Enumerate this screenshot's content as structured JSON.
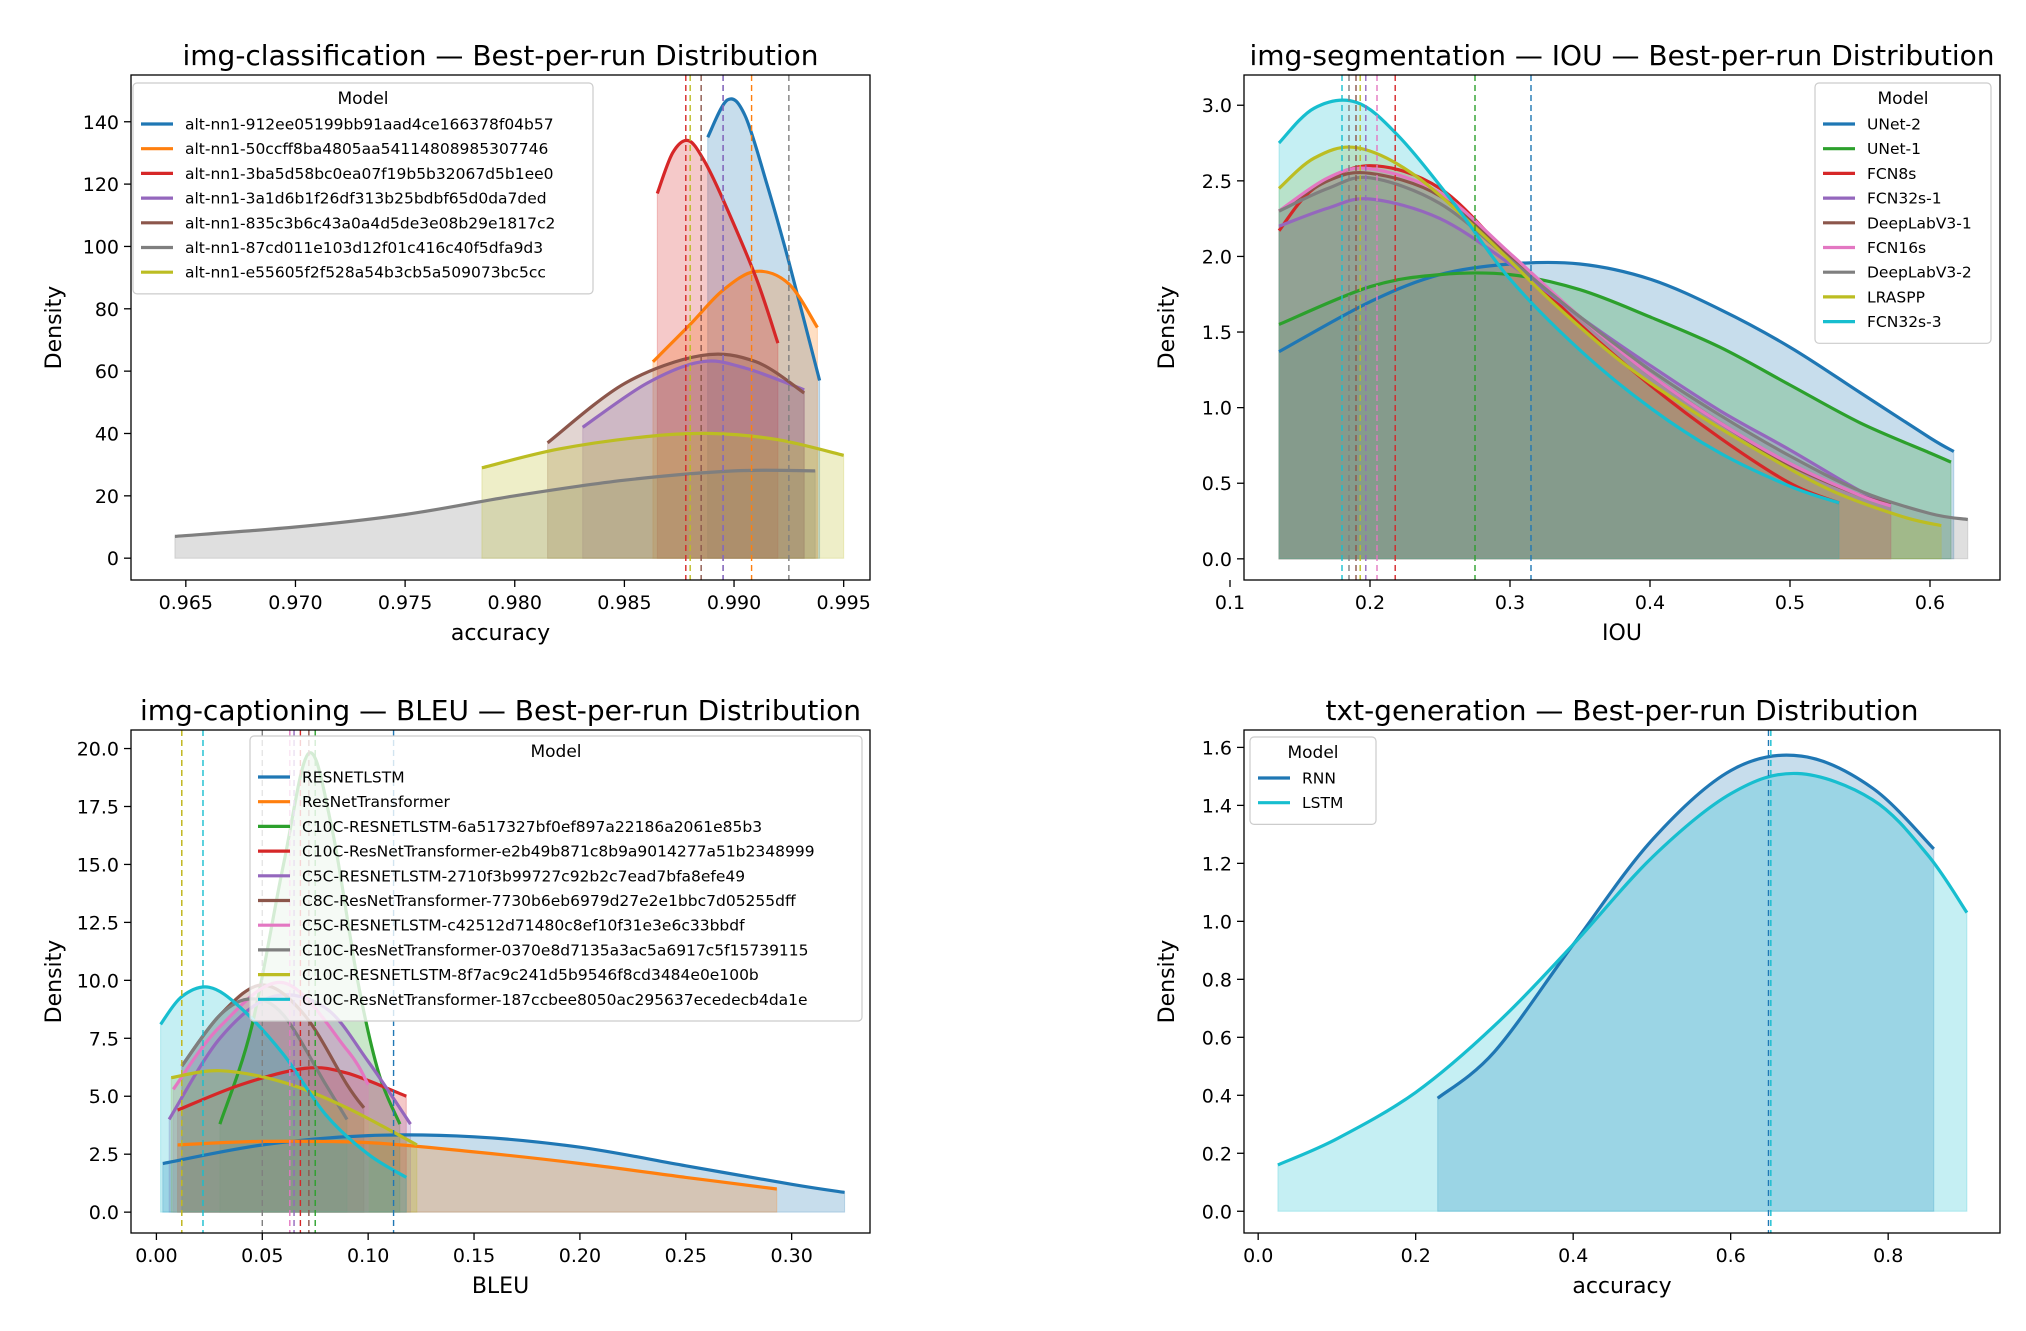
{
  "figure_title": "Best-per-run Distribution (4 panels)",
  "chart_data": [
    {
      "type": "kde",
      "title": "img-classification — Best-per-run Distribution",
      "xlabel": "accuracy",
      "ylabel": "Density",
      "xlim": [
        0.9625,
        0.9962
      ],
      "ylim": [
        -7,
        155
      ],
      "xticks": [
        0.965,
        0.97,
        0.975,
        0.98,
        0.985,
        0.99,
        0.995
      ],
      "xtick_labels": [
        "0.965",
        "0.970",
        "0.975",
        "0.980",
        "0.985",
        "0.990",
        "0.995"
      ],
      "yticks": [
        0,
        20,
        40,
        60,
        80,
        100,
        120,
        140
      ],
      "ytick_labels": [
        "0",
        "20",
        "40",
        "60",
        "80",
        "100",
        "120",
        "140"
      ],
      "legend_title": "Model",
      "legend_position": "top-left",
      "series": [
        {
          "name": "alt-nn1-912ee05199bb91aad4ce166378f04b57",
          "color": "#1f77b4",
          "x": [
            0.9888,
            0.9897,
            0.9905,
            0.9915,
            0.9925,
            0.9939
          ],
          "y": [
            135,
            147,
            142,
            120,
            95,
            57
          ],
          "mean": 0.9895
        },
        {
          "name": "alt-nn1-50ccff8ba4805aa54114808985307746",
          "color": "#ff7f0e",
          "x": [
            0.9863,
            0.988,
            0.9895,
            0.991,
            0.9925,
            0.9938
          ],
          "y": [
            63,
            75,
            86,
            92,
            88,
            74
          ],
          "mean": 0.9908
        },
        {
          "name": "alt-nn1-3ba5d58bc0ea07f19b5b32067d5b1ee0",
          "color": "#d62728",
          "x": [
            0.9865,
            0.9872,
            0.9879,
            0.9886,
            0.9895,
            0.991,
            0.992
          ],
          "y": [
            117,
            130,
            134,
            128,
            115,
            90,
            69
          ],
          "mean": 0.9878
        },
        {
          "name": "alt-nn1-3a1d6b1f26df313b25bdbf65d0da7ded",
          "color": "#9467bd",
          "x": [
            0.9831,
            0.986,
            0.9885,
            0.9905,
            0.9932
          ],
          "y": [
            42,
            56,
            63,
            61,
            54
          ],
          "mean": 0.9895
        },
        {
          "name": "alt-nn1-835c3b6c43a0a4d5de3e08b29e1817c2",
          "color": "#8c564b",
          "x": [
            0.9815,
            0.985,
            0.9885,
            0.991,
            0.9932
          ],
          "y": [
            37,
            56,
            65,
            63,
            53
          ],
          "mean": 0.9885
        },
        {
          "name": "alt-nn1-87cd011e103d12f01c416c40f5dfa9d3",
          "color": "#7f7f7f",
          "x": [
            0.9645,
            0.97,
            0.975,
            0.98,
            0.985,
            0.99,
            0.9937
          ],
          "y": [
            7,
            10,
            14,
            20,
            25,
            28,
            28
          ],
          "mean": 0.9925
        },
        {
          "name": "alt-nn1-e55605f2f528a54b3cb5a509073bc5cc",
          "color": "#bcbd22",
          "x": [
            0.9785,
            0.982,
            0.986,
            0.989,
            0.992,
            0.995
          ],
          "y": [
            29,
            35,
            39,
            40,
            38,
            33
          ],
          "mean": 0.988
        }
      ]
    },
    {
      "type": "kde",
      "title": "img-segmentation — IOU — Best-per-run Distribution",
      "xlabel": "IOU",
      "ylabel": "Density",
      "xlim": [
        0.11,
        0.65
      ],
      "ylim": [
        -0.14,
        3.2
      ],
      "xticks": [
        0.1,
        0.2,
        0.3,
        0.4,
        0.5,
        0.6
      ],
      "xtick_labels": [
        "0.1",
        "0.2",
        "0.3",
        "0.4",
        "0.5",
        "0.6"
      ],
      "yticks": [
        0.0,
        0.5,
        1.0,
        1.5,
        2.0,
        2.5,
        3.0
      ],
      "ytick_labels": [
        "0.0",
        "0.5",
        "1.0",
        "1.5",
        "2.0",
        "2.5",
        "3.0"
      ],
      "legend_title": "Model",
      "legend_position": "top-right",
      "series": [
        {
          "name": "UNet-2",
          "color": "#1f77b4",
          "x": [
            0.135,
            0.2,
            0.25,
            0.3,
            0.35,
            0.4,
            0.45,
            0.5,
            0.55,
            0.6,
            0.617
          ],
          "y": [
            1.37,
            1.7,
            1.88,
            1.95,
            1.95,
            1.85,
            1.65,
            1.4,
            1.1,
            0.8,
            0.71
          ],
          "mean": 0.315
        },
        {
          "name": "UNet-1",
          "color": "#2ca02c",
          "x": [
            0.135,
            0.2,
            0.25,
            0.3,
            0.35,
            0.4,
            0.45,
            0.5,
            0.55,
            0.6,
            0.615
          ],
          "y": [
            1.55,
            1.8,
            1.88,
            1.88,
            1.78,
            1.6,
            1.4,
            1.15,
            0.9,
            0.7,
            0.64
          ],
          "mean": 0.275
        },
        {
          "name": "FCN8s",
          "color": "#d62728",
          "x": [
            0.135,
            0.16,
            0.2,
            0.25,
            0.3,
            0.35,
            0.4,
            0.45,
            0.5,
            0.535
          ],
          "y": [
            2.17,
            2.45,
            2.6,
            2.45,
            2.0,
            1.55,
            1.15,
            0.8,
            0.5,
            0.37
          ],
          "mean": 0.218
        },
        {
          "name": "FCN32s-1",
          "color": "#9467bd",
          "x": [
            0.135,
            0.17,
            0.2,
            0.25,
            0.3,
            0.35,
            0.4,
            0.45,
            0.5,
            0.55,
            0.572
          ],
          "y": [
            2.2,
            2.32,
            2.38,
            2.25,
            1.95,
            1.6,
            1.28,
            0.98,
            0.72,
            0.45,
            0.37
          ],
          "mean": 0.197
        },
        {
          "name": "DeepLabV3-1",
          "color": "#8c564b",
          "x": [
            0.135,
            0.17,
            0.2,
            0.25,
            0.3,
            0.35,
            0.4,
            0.45,
            0.5,
            0.55,
            0.572
          ],
          "y": [
            2.3,
            2.5,
            2.55,
            2.4,
            2.0,
            1.6,
            1.22,
            0.9,
            0.62,
            0.42,
            0.36
          ],
          "mean": 0.19
        },
        {
          "name": "FCN16s",
          "color": "#e377c2",
          "x": [
            0.135,
            0.17,
            0.2,
            0.25,
            0.3,
            0.35,
            0.4,
            0.45,
            0.5,
            0.55,
            0.572
          ],
          "y": [
            2.3,
            2.52,
            2.58,
            2.42,
            2.02,
            1.6,
            1.22,
            0.9,
            0.63,
            0.42,
            0.35
          ],
          "mean": 0.205
        },
        {
          "name": "DeepLabV3-2",
          "color": "#7f7f7f",
          "x": [
            0.135,
            0.17,
            0.2,
            0.25,
            0.3,
            0.35,
            0.4,
            0.45,
            0.5,
            0.55,
            0.6,
            0.627
          ],
          "y": [
            2.3,
            2.45,
            2.52,
            2.35,
            1.98,
            1.6,
            1.25,
            0.95,
            0.68,
            0.45,
            0.3,
            0.26
          ],
          "mean": 0.185
        },
        {
          "name": "LRASPP",
          "color": "#bcbd22",
          "x": [
            0.135,
            0.16,
            0.19,
            0.23,
            0.28,
            0.33,
            0.38,
            0.43,
            0.48,
            0.53,
            0.58,
            0.608
          ],
          "y": [
            2.45,
            2.65,
            2.72,
            2.55,
            2.15,
            1.7,
            1.3,
            0.98,
            0.7,
            0.45,
            0.28,
            0.22
          ],
          "mean": 0.193
        },
        {
          "name": "FCN32s-3",
          "color": "#17becf",
          "x": [
            0.135,
            0.16,
            0.19,
            0.22,
            0.26,
            0.3,
            0.35,
            0.4,
            0.45,
            0.5,
            0.535
          ],
          "y": [
            2.75,
            2.98,
            3.02,
            2.8,
            2.35,
            1.85,
            1.38,
            1.0,
            0.7,
            0.48,
            0.37
          ],
          "mean": 0.18
        }
      ]
    },
    {
      "type": "kde",
      "title": "img-captioning — BLEU — Best-per-run Distribution",
      "xlabel": "BLEU",
      "ylabel": "Density",
      "xlim": [
        -0.012,
        0.337
      ],
      "ylim": [
        -0.9,
        20.8
      ],
      "xticks": [
        0.0,
        0.05,
        0.1,
        0.15,
        0.2,
        0.25,
        0.3
      ],
      "xtick_labels": [
        "0.00",
        "0.05",
        "0.10",
        "0.15",
        "0.20",
        "0.25",
        "0.30"
      ],
      "yticks": [
        0.0,
        2.5,
        5.0,
        7.5,
        10.0,
        12.5,
        15.0,
        17.5,
        20.0
      ],
      "ytick_labels": [
        "0.0",
        "2.5",
        "5.0",
        "7.5",
        "10.0",
        "12.5",
        "15.0",
        "17.5",
        "20.0"
      ],
      "legend_title": "Model",
      "legend_position": "top-center",
      "series": [
        {
          "name": "RESNETLSTM",
          "color": "#1f77b4",
          "x": [
            0.003,
            0.05,
            0.1,
            0.15,
            0.2,
            0.25,
            0.3,
            0.325
          ],
          "y": [
            2.1,
            2.9,
            3.3,
            3.25,
            2.8,
            2.0,
            1.2,
            0.85
          ],
          "mean": 0.112
        },
        {
          "name": "ResNetTransformer",
          "color": "#ff7f0e",
          "x": [
            0.01,
            0.05,
            0.1,
            0.15,
            0.2,
            0.25,
            0.293
          ],
          "y": [
            2.9,
            3.05,
            3.0,
            2.6,
            2.1,
            1.5,
            1.0
          ],
          "mean": 0.012
        },
        {
          "name": "C10C-RESNETLSTM-6a517327bf0ef897a22186a2061e85b3",
          "color": "#2ca02c",
          "x": [
            0.03,
            0.045,
            0.06,
            0.072,
            0.083,
            0.095,
            0.105,
            0.115
          ],
          "y": [
            3.8,
            8.0,
            15.0,
            19.8,
            16.5,
            10.0,
            6.0,
            3.8
          ],
          "mean": 0.075
        },
        {
          "name": "C10C-ResNetTransformer-e2b49b871c8b9a9014277a51b2348999",
          "color": "#d62728",
          "x": [
            0.01,
            0.04,
            0.07,
            0.09,
            0.118
          ],
          "y": [
            4.4,
            5.5,
            6.2,
            6.0,
            5.0
          ],
          "mean": 0.068
        },
        {
          "name": "C5C-RESNETLSTM-2710f3b99727c92b2c7ead7bfa8efe49",
          "color": "#9467bd",
          "x": [
            0.006,
            0.03,
            0.055,
            0.08,
            0.1,
            0.12
          ],
          "y": [
            4.0,
            7.5,
            9.3,
            8.8,
            6.5,
            3.8
          ],
          "mean": 0.065
        },
        {
          "name": "C8C-ResNetTransformer-7730b6eb6979d27e2e1bbc7d05255dff",
          "color": "#8c564b",
          "x": [
            0.012,
            0.03,
            0.05,
            0.07,
            0.09,
            0.098
          ],
          "y": [
            6.3,
            8.5,
            9.8,
            8.5,
            5.5,
            4.5
          ],
          "mean": 0.072
        },
        {
          "name": "C5C-RESNETLSTM-c42512d71480c8ef10f31e3e6c33bbdf",
          "color": "#e377c2",
          "x": [
            0.008,
            0.03,
            0.06,
            0.09,
            0.1
          ],
          "y": [
            5.3,
            8.0,
            9.9,
            7.0,
            5.5
          ],
          "mean": 0.063
        },
        {
          "name": "C10C-ResNetTransformer-0370e8d7135a3ac5a6917c5f15739115",
          "color": "#7f7f7f",
          "x": [
            0.012,
            0.03,
            0.045,
            0.06,
            0.08,
            0.09
          ],
          "y": [
            6.3,
            8.5,
            9.2,
            8.5,
            5.5,
            4.0
          ],
          "mean": 0.05
        },
        {
          "name": "C10C-RESNETLSTM-8f7ac9c241d5b9546f8cd3484e0e100b",
          "color": "#bcbd22",
          "x": [
            0.007,
            0.03,
            0.06,
            0.09,
            0.123
          ],
          "y": [
            5.8,
            6.1,
            5.6,
            4.5,
            2.9
          ],
          "mean": 0.012
        },
        {
          "name": "C10C-ResNetTransformer-187ccbee8050ac295637ecedecb4da1e",
          "color": "#17becf",
          "x": [
            0.002,
            0.012,
            0.025,
            0.04,
            0.06,
            0.08,
            0.1,
            0.118
          ],
          "y": [
            8.1,
            9.3,
            9.7,
            8.8,
            6.8,
            4.2,
            2.5,
            1.5
          ],
          "mean": 0.022
        }
      ]
    },
    {
      "type": "kde",
      "title": "txt-generation — Best-per-run Distribution",
      "xlabel": "accuracy",
      "ylabel": "Density",
      "xlim": [
        -0.018,
        0.942
      ],
      "ylim": [
        -0.075,
        1.66
      ],
      "xticks": [
        0.0,
        0.2,
        0.4,
        0.6,
        0.8
      ],
      "xtick_labels": [
        "0.0",
        "0.2",
        "0.4",
        "0.6",
        "0.8"
      ],
      "yticks": [
        0.0,
        0.2,
        0.4,
        0.6,
        0.8,
        1.0,
        1.2,
        1.4,
        1.6
      ],
      "ytick_labels": [
        "0.0",
        "0.2",
        "0.4",
        "0.6",
        "0.8",
        "1.0",
        "1.2",
        "1.4",
        "1.6"
      ],
      "legend_title": "Model",
      "legend_position": "top-left",
      "series": [
        {
          "name": "RNN",
          "color": "#1f77b4",
          "x": [
            0.228,
            0.3,
            0.4,
            0.5,
            0.6,
            0.69,
            0.78,
            0.858
          ],
          "y": [
            0.39,
            0.55,
            0.92,
            1.28,
            1.52,
            1.57,
            1.46,
            1.25
          ],
          "mean": 0.648
        },
        {
          "name": "LSTM",
          "color": "#17becf",
          "x": [
            0.025,
            0.1,
            0.2,
            0.3,
            0.4,
            0.5,
            0.6,
            0.685,
            0.78,
            0.85,
            0.9
          ],
          "y": [
            0.16,
            0.25,
            0.41,
            0.64,
            0.92,
            1.22,
            1.44,
            1.51,
            1.42,
            1.23,
            1.03
          ],
          "mean": 0.651
        }
      ]
    }
  ]
}
